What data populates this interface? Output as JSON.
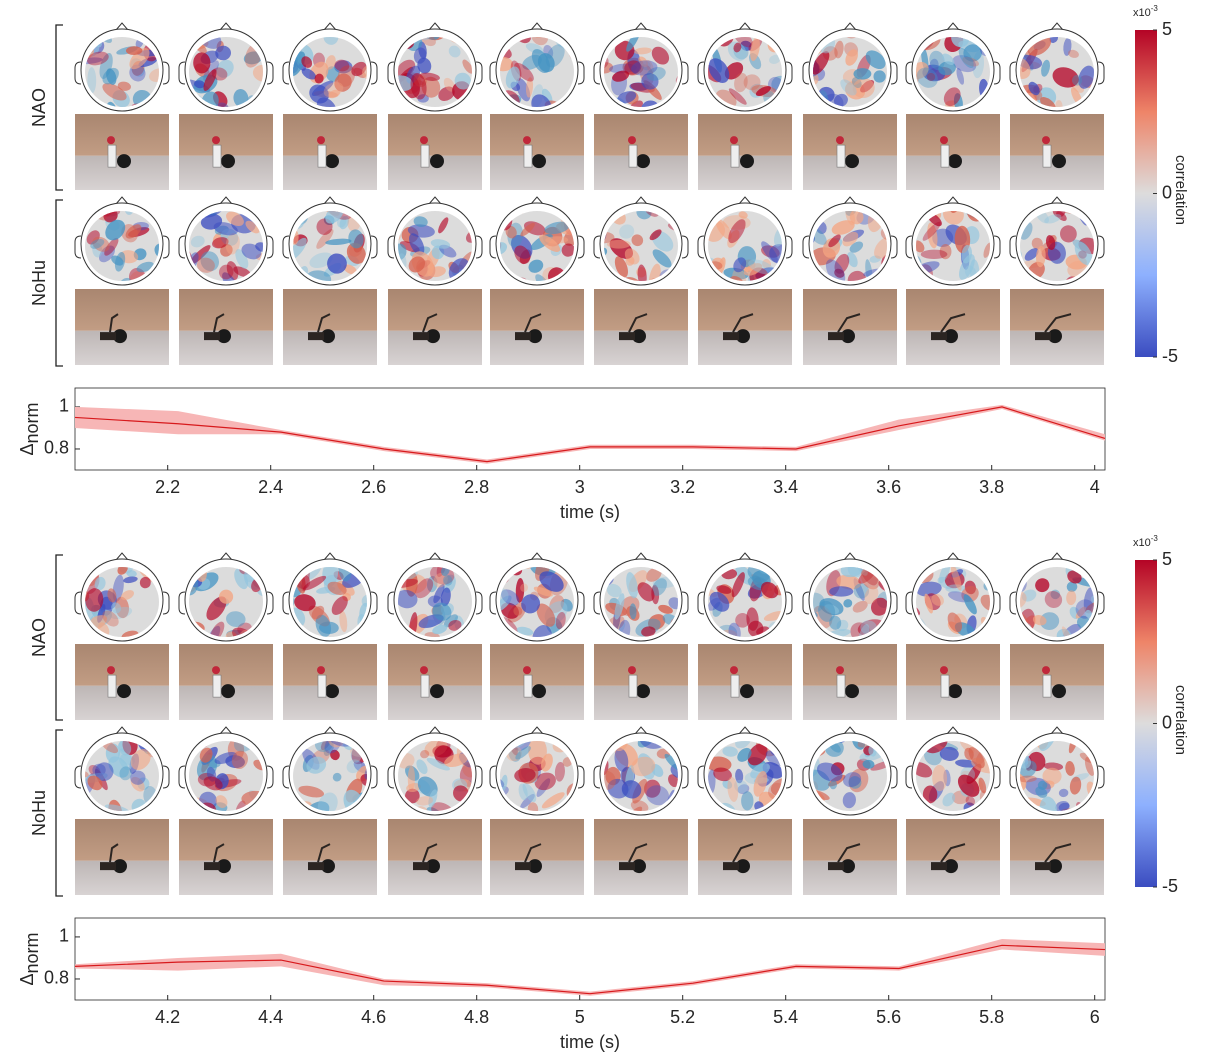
{
  "chart_data": [
    {
      "type": "line",
      "row_labels": [
        "NAO",
        "NoHu"
      ],
      "x_label": "time (s)",
      "y_label": "Δ",
      "y_label_sub": "norm",
      "x": [
        2.02,
        2.22,
        2.42,
        2.62,
        2.82,
        3.02,
        3.22,
        3.42,
        3.62,
        3.82,
        4.02
      ],
      "values": [
        0.95,
        0.92,
        0.88,
        0.8,
        0.74,
        0.81,
        0.81,
        0.8,
        0.91,
        1.0,
        0.85
      ],
      "upper": [
        1.0,
        0.98,
        0.89,
        0.81,
        0.75,
        0.82,
        0.82,
        0.81,
        0.94,
        1.01,
        0.87
      ],
      "lower": [
        0.9,
        0.87,
        0.87,
        0.79,
        0.73,
        0.8,
        0.8,
        0.79,
        0.89,
        0.99,
        0.84
      ],
      "color": "#d7191c",
      "band_color": "#f7b6b6",
      "xlim": [
        2.02,
        4.02
      ],
      "xticks": [
        2.2,
        2.4,
        2.6,
        2.8,
        3,
        3.2,
        3.4,
        3.6,
        3.8,
        4
      ],
      "ylim": [
        0.7,
        1.09
      ],
      "yticks": [
        0.8,
        1
      ],
      "colorbar": {
        "label": "correlation",
        "scale_base": "x10",
        "scale_exponent": "-3",
        "lim": [
          -5,
          5
        ],
        "ticks": [
          5,
          0,
          -5
        ]
      }
    },
    {
      "type": "line",
      "row_labels": [
        "NAO",
        "NoHu"
      ],
      "x_label": "time (s)",
      "y_label": "Δ",
      "y_label_sub": "norm",
      "x": [
        4.02,
        4.22,
        4.42,
        4.62,
        4.82,
        5.02,
        5.22,
        5.42,
        5.62,
        5.82,
        6.02
      ],
      "values": [
        0.86,
        0.88,
        0.89,
        0.79,
        0.77,
        0.73,
        0.78,
        0.86,
        0.85,
        0.96,
        0.94
      ],
      "upper": [
        0.87,
        0.9,
        0.92,
        0.8,
        0.78,
        0.74,
        0.79,
        0.87,
        0.86,
        0.99,
        0.97
      ],
      "lower": [
        0.85,
        0.84,
        0.86,
        0.77,
        0.76,
        0.72,
        0.77,
        0.85,
        0.84,
        0.94,
        0.91
      ],
      "color": "#d7191c",
      "band_color": "#f7b6b6",
      "xlim": [
        4.02,
        6.02
      ],
      "xticks": [
        4.2,
        4.4,
        4.6,
        4.8,
        5,
        5.2,
        5.4,
        5.6,
        5.8,
        6
      ],
      "ylim": [
        0.7,
        1.09
      ],
      "yticks": [
        0.8,
        1
      ],
      "colorbar": {
        "label": "correlation",
        "scale_base": "x10",
        "scale_exponent": "-3",
        "lim": [
          -5,
          5
        ],
        "ticks": [
          5,
          0,
          -5
        ]
      }
    }
  ]
}
